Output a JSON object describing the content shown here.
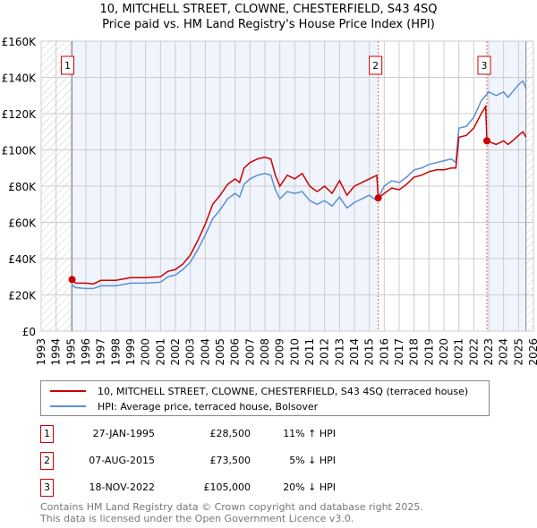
{
  "chart_data": {
    "type": "line",
    "title": "10, MITCHELL STREET, CLOWNE, CHESTERFIELD, S43 4SQ",
    "subtitle": "Price paid vs. HM Land Registry's House Price Index (HPI)",
    "xlim": [
      1993,
      2026
    ],
    "ylim": [
      0,
      160000
    ],
    "x_ticks": [
      "1993",
      "1994",
      "1995",
      "1996",
      "1997",
      "1998",
      "1999",
      "2000",
      "2001",
      "2002",
      "2003",
      "2004",
      "2005",
      "2006",
      "2007",
      "2008",
      "2009",
      "2010",
      "2011",
      "2012",
      "2013",
      "2014",
      "2015",
      "2016",
      "2017",
      "2018",
      "2019",
      "2020",
      "2021",
      "2022",
      "2023",
      "2024",
      "2025",
      "2026"
    ],
    "y_ticks": [
      {
        "v": 0,
        "label": "£0"
      },
      {
        "v": 20000,
        "label": "£20K"
      },
      {
        "v": 40000,
        "label": "£40K"
      },
      {
        "v": 60000,
        "label": "£60K"
      },
      {
        "v": 80000,
        "label": "£80K"
      },
      {
        "v": 100000,
        "label": "£100K"
      },
      {
        "v": 120000,
        "label": "£120K"
      },
      {
        "v": 140000,
        "label": "£140K"
      },
      {
        "v": 160000,
        "label": "£160K"
      }
    ],
    "grid": true,
    "data_range": [
      1995.07,
      2025.5
    ],
    "series": [
      {
        "name": "10, MITCHELL STREET, CLOWNE, CHESTERFIELD, S43 4SQ (terraced house)",
        "color": "#cc0000",
        "points": [
          [
            1995.07,
            28.5
          ],
          [
            1995.3,
            26.5
          ],
          [
            1996,
            26.5
          ],
          [
            1996.5,
            26
          ],
          [
            1997,
            28
          ],
          [
            1998,
            28
          ],
          [
            1999,
            29.5
          ],
          [
            2000,
            29.5
          ],
          [
            2001,
            30
          ],
          [
            2001.5,
            33
          ],
          [
            2002,
            34
          ],
          [
            2002.5,
            37
          ],
          [
            2003,
            42
          ],
          [
            2003.5,
            50
          ],
          [
            2004,
            59
          ],
          [
            2004.5,
            70
          ],
          [
            2005,
            75
          ],
          [
            2005.5,
            81
          ],
          [
            2006,
            84
          ],
          [
            2006.3,
            82
          ],
          [
            2006.6,
            90
          ],
          [
            2007,
            93
          ],
          [
            2007.5,
            95
          ],
          [
            2008,
            96
          ],
          [
            2008.4,
            95
          ],
          [
            2008.7,
            86
          ],
          [
            2009,
            80
          ],
          [
            2009.5,
            86
          ],
          [
            2010,
            84
          ],
          [
            2010.5,
            87
          ],
          [
            2011,
            80
          ],
          [
            2011.5,
            77
          ],
          [
            2012,
            80
          ],
          [
            2012.5,
            76
          ],
          [
            2013,
            83
          ],
          [
            2013.5,
            75
          ],
          [
            2014,
            80
          ],
          [
            2014.5,
            82
          ],
          [
            2015,
            84
          ],
          [
            2015.5,
            86
          ],
          [
            2015.6,
            73.5
          ],
          [
            2016,
            76
          ],
          [
            2016.5,
            79
          ],
          [
            2017,
            78
          ],
          [
            2017.5,
            81
          ],
          [
            2018,
            85
          ],
          [
            2018.5,
            86
          ],
          [
            2019,
            88
          ],
          [
            2019.5,
            89
          ],
          [
            2020,
            89
          ],
          [
            2020.5,
            90
          ],
          [
            2020.8,
            90
          ],
          [
            2021,
            107
          ],
          [
            2021.5,
            108
          ],
          [
            2022,
            112
          ],
          [
            2022.5,
            120
          ],
          [
            2022.8,
            124
          ],
          [
            2022.88,
            105
          ],
          [
            2023.5,
            103
          ],
          [
            2024,
            105
          ],
          [
            2024.3,
            103
          ],
          [
            2024.6,
            105
          ],
          [
            2025,
            108
          ],
          [
            2025.3,
            110
          ],
          [
            2025.5,
            107
          ]
        ]
      },
      {
        "name": "HPI: Average price, terraced house, Bolsover",
        "color": "#5b8fd4",
        "points": [
          [
            1995.07,
            25.5
          ],
          [
            1995.3,
            24
          ],
          [
            1996,
            23.5
          ],
          [
            1996.5,
            23.5
          ],
          [
            1997,
            25
          ],
          [
            1998,
            25
          ],
          [
            1999,
            26.5
          ],
          [
            2000,
            26.5
          ],
          [
            2001,
            27
          ],
          [
            2001.5,
            30
          ],
          [
            2002,
            31
          ],
          [
            2002.5,
            34
          ],
          [
            2003,
            38
          ],
          [
            2003.5,
            45
          ],
          [
            2004,
            53
          ],
          [
            2004.5,
            62
          ],
          [
            2005,
            67
          ],
          [
            2005.5,
            73
          ],
          [
            2006,
            76
          ],
          [
            2006.3,
            74
          ],
          [
            2006.6,
            81
          ],
          [
            2007,
            84
          ],
          [
            2007.5,
            86
          ],
          [
            2008,
            87
          ],
          [
            2008.4,
            86
          ],
          [
            2008.7,
            78
          ],
          [
            2009,
            73
          ],
          [
            2009.5,
            77
          ],
          [
            2010,
            76
          ],
          [
            2010.5,
            77
          ],
          [
            2011,
            72
          ],
          [
            2011.5,
            70
          ],
          [
            2012,
            72
          ],
          [
            2012.5,
            69
          ],
          [
            2013,
            74
          ],
          [
            2013.5,
            68
          ],
          [
            2014,
            71
          ],
          [
            2014.5,
            73
          ],
          [
            2015,
            75
          ],
          [
            2015.5,
            72
          ],
          [
            2016,
            80
          ],
          [
            2016.5,
            83
          ],
          [
            2017,
            82
          ],
          [
            2017.5,
            85
          ],
          [
            2018,
            89
          ],
          [
            2018.5,
            90
          ],
          [
            2019,
            92
          ],
          [
            2019.5,
            93
          ],
          [
            2020,
            94
          ],
          [
            2020.5,
            95
          ],
          [
            2020.8,
            93
          ],
          [
            2021,
            112
          ],
          [
            2021.5,
            113
          ],
          [
            2022,
            118
          ],
          [
            2022.5,
            127
          ],
          [
            2023,
            132
          ],
          [
            2023.5,
            130
          ],
          [
            2024,
            132
          ],
          [
            2024.3,
            129
          ],
          [
            2024.6,
            132
          ],
          [
            2025,
            136
          ],
          [
            2025.3,
            138
          ],
          [
            2025.5,
            134
          ]
        ]
      }
    ],
    "sales": [
      {
        "id": "1",
        "x": 1995.07,
        "value": 28500,
        "date": "27-JAN-1995",
        "price": "£28,500",
        "hpi": "11% ↑ HPI"
      },
      {
        "id": "2",
        "x": 2015.6,
        "value": 73500,
        "date": "07-AUG-2015",
        "price": "£73,500",
        "hpi": "5% ↓ HPI"
      },
      {
        "id": "3",
        "x": 2022.88,
        "value": 105000,
        "date": "18-NOV-2022",
        "price": "£105,000",
        "hpi": "20% ↓ HPI"
      }
    ]
  },
  "footer": [
    "Contains HM Land Registry data © Crown copyright and database right 2025.",
    "This data is licensed under the Open Government Licence v3.0."
  ]
}
